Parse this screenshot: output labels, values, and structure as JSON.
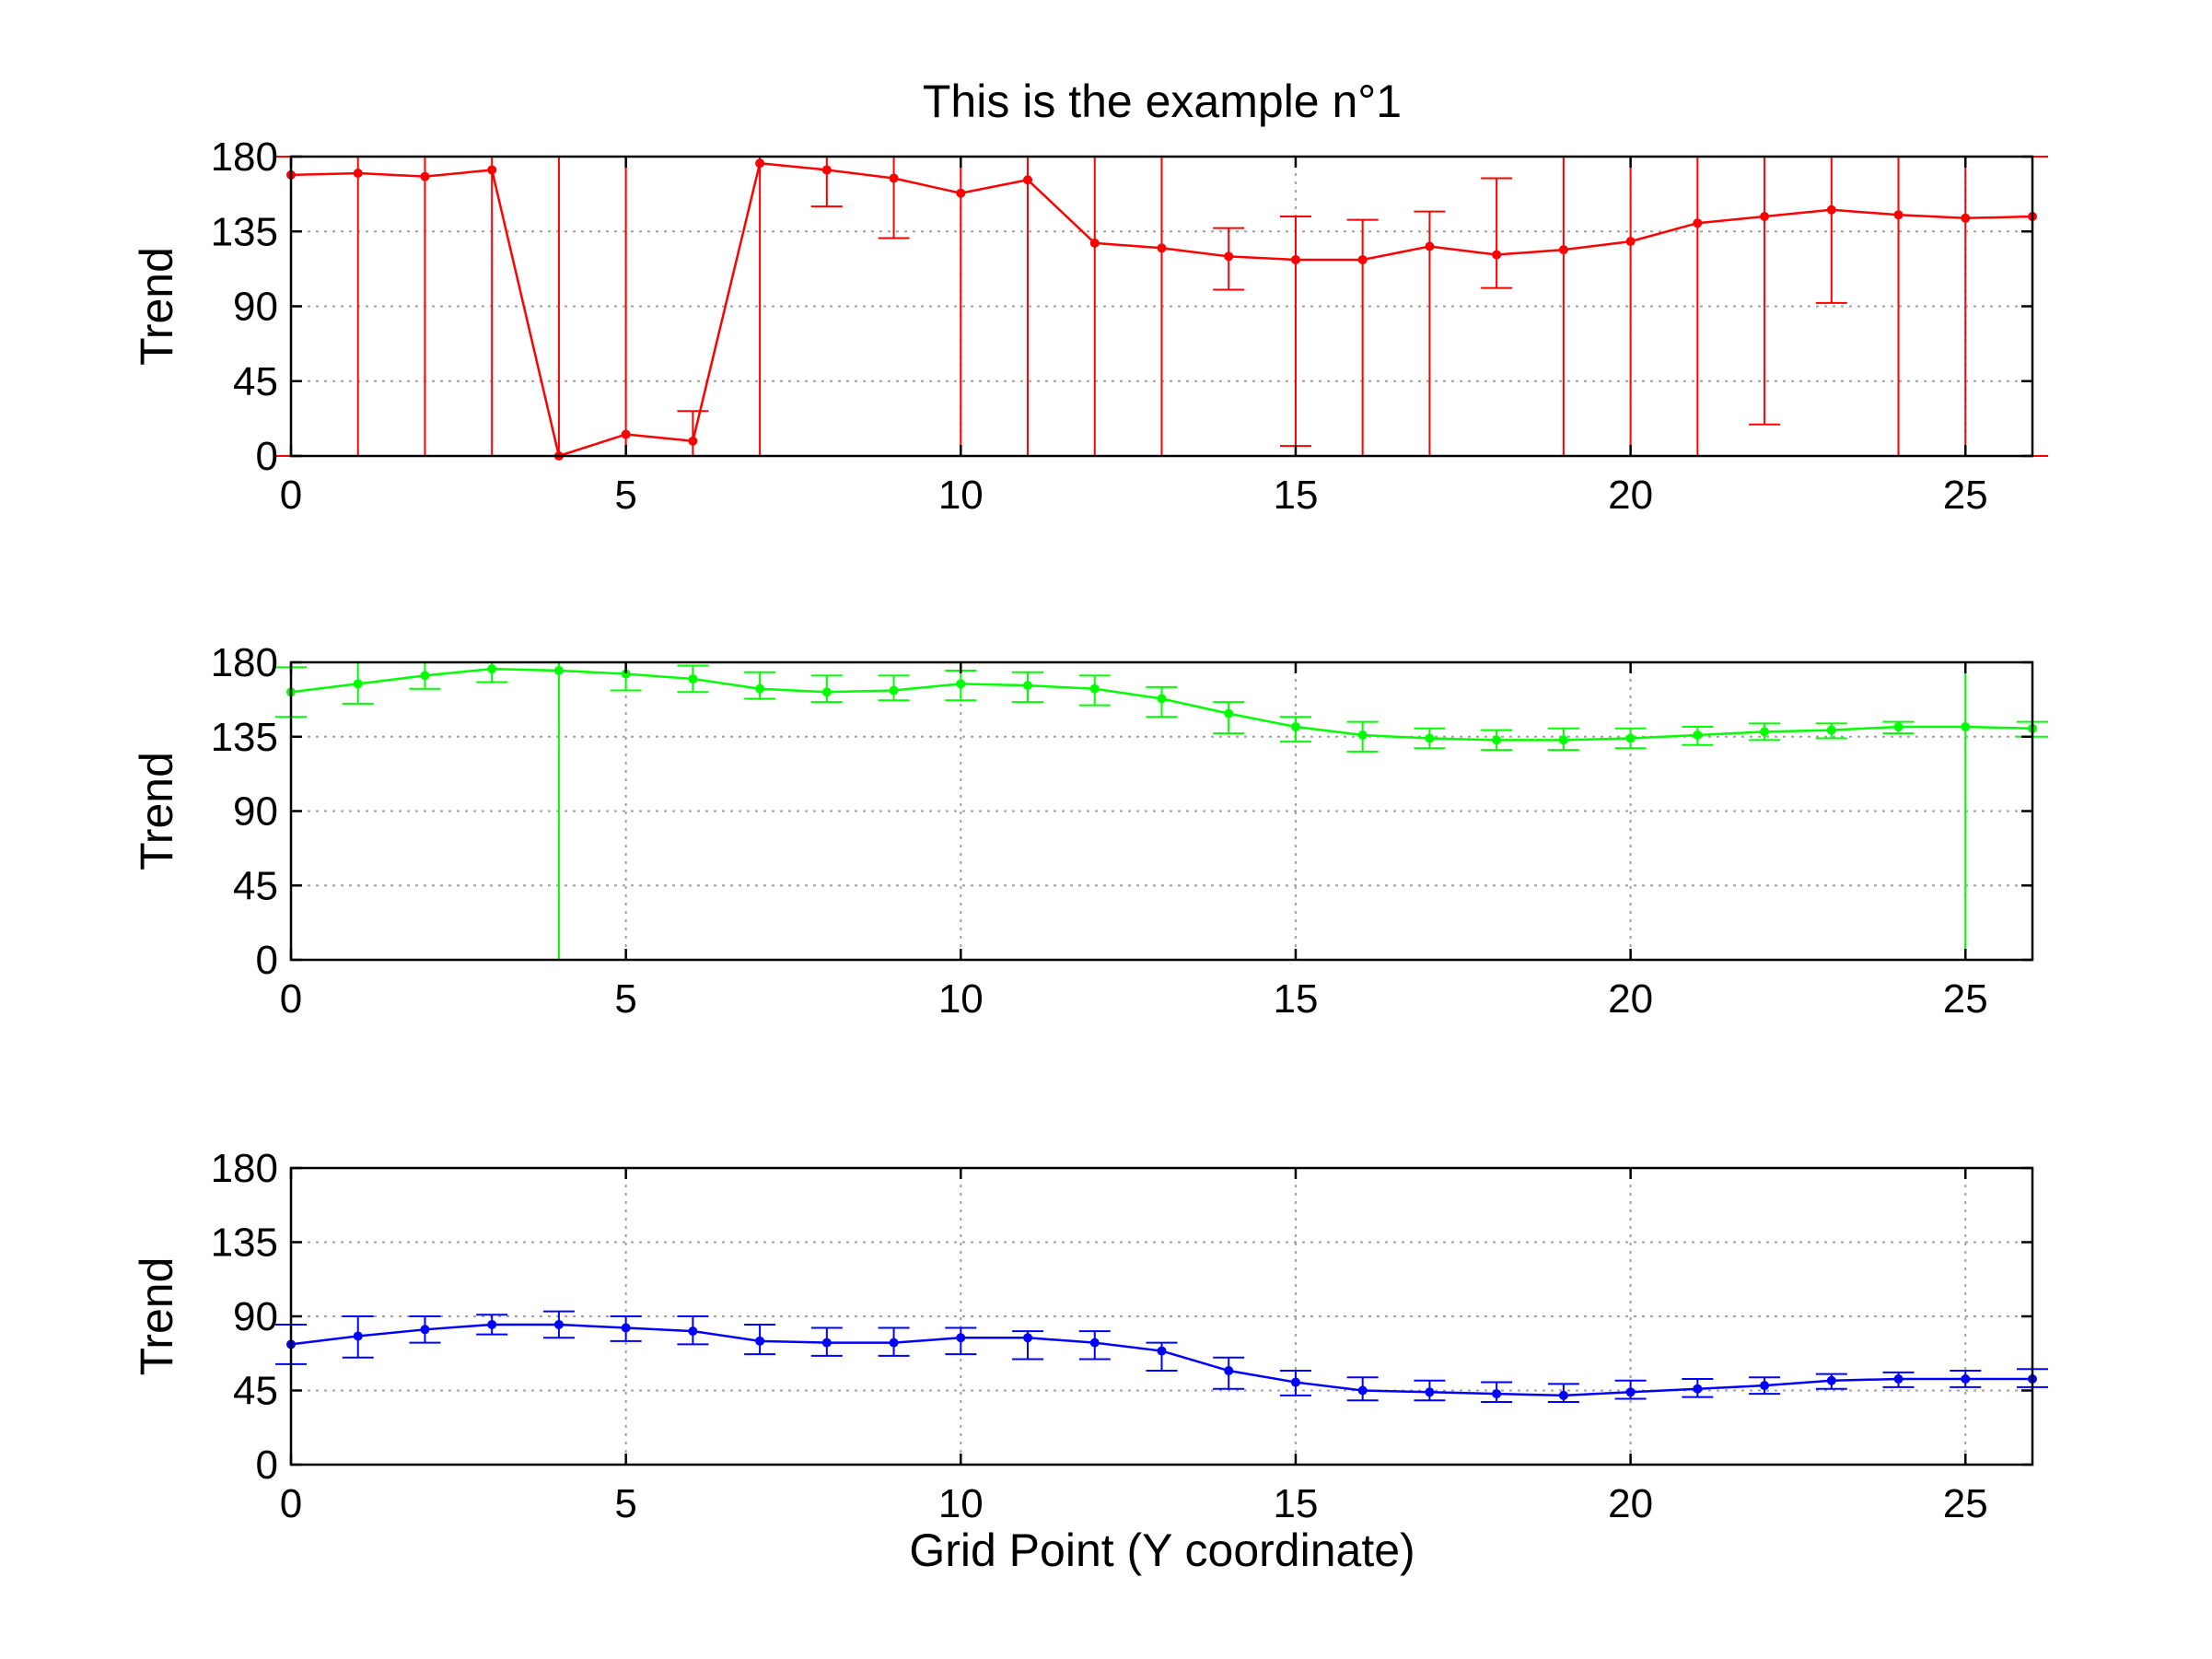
{
  "chart_data": [
    {
      "type": "line",
      "title": "This is the example n°1",
      "xlabel": "",
      "ylabel": "Trend",
      "xlim": [
        0,
        26
      ],
      "ylim": [
        0,
        180
      ],
      "xticks": [
        0,
        5,
        10,
        15,
        20,
        25
      ],
      "yticks": [
        0,
        45,
        90,
        135,
        180
      ],
      "grid": true,
      "color": "#ff0000",
      "series": [
        {
          "x": [
            0,
            1,
            2,
            3,
            4,
            5,
            6,
            7,
            8,
            9,
            10,
            11,
            12,
            13,
            14,
            15,
            16,
            17,
            18,
            19,
            20,
            21,
            22,
            23,
            24,
            25,
            26
          ],
          "values": [
            169,
            170,
            168,
            172,
            0,
            13,
            9,
            176,
            172,
            167,
            158,
            166,
            128,
            125,
            120,
            118,
            118,
            126,
            121,
            124,
            129,
            140,
            144,
            148,
            145,
            143,
            144
          ],
          "err_low": [
            169,
            170,
            168,
            172,
            0,
            13,
            150,
            176,
            22,
            36,
            158,
            166,
            128,
            125,
            20,
            112,
            118,
            126,
            20,
            124,
            129,
            140,
            125,
            56,
            145,
            143,
            144
          ],
          "err_high": [
            11,
            10,
            12,
            8,
            180,
            167,
            18,
            4,
            8,
            13,
            22,
            14,
            52,
            55,
            17,
            26,
            24,
            21,
            46,
            56,
            51,
            40,
            36,
            32,
            35,
            37,
            36
          ]
        }
      ]
    },
    {
      "type": "line",
      "title": "",
      "xlabel": "",
      "ylabel": "Trend",
      "xlim": [
        0,
        26
      ],
      "ylim": [
        0,
        180
      ],
      "xticks": [
        0,
        5,
        10,
        15,
        20,
        25
      ],
      "yticks": [
        0,
        45,
        90,
        135,
        180
      ],
      "grid": true,
      "color": "#00ff00",
      "series": [
        {
          "x": [
            0,
            1,
            2,
            3,
            4,
            5,
            6,
            7,
            8,
            9,
            10,
            11,
            12,
            13,
            14,
            15,
            16,
            17,
            18,
            19,
            20,
            21,
            22,
            23,
            24,
            25,
            26
          ],
          "values": [
            162,
            167,
            172,
            176,
            175,
            173,
            170,
            164,
            162,
            163,
            167,
            166,
            164,
            158,
            149,
            141,
            136,
            134,
            133,
            133,
            134,
            136,
            138,
            139,
            141,
            141,
            140
          ],
          "err_low": [
            15,
            12,
            8,
            8,
            175,
            10,
            8,
            6,
            6,
            6,
            10,
            10,
            10,
            11,
            12,
            9,
            10,
            6,
            6,
            6,
            6,
            6,
            5,
            5,
            4,
            141,
            5
          ],
          "err_high": [
            15,
            13,
            8,
            4,
            5,
            7,
            8,
            10,
            10,
            9,
            8,
            8,
            8,
            7,
            7,
            6,
            8,
            6,
            6,
            7,
            6,
            5,
            5,
            4,
            3,
            39,
            4
          ]
        }
      ]
    },
    {
      "type": "line",
      "title": "",
      "xlabel": "Grid Point (Y coordinate)",
      "ylabel": "Trend",
      "xlim": [
        0,
        26
      ],
      "ylim": [
        0,
        180
      ],
      "xticks": [
        0,
        5,
        10,
        15,
        20,
        25
      ],
      "yticks": [
        0,
        45,
        90,
        135,
        180
      ],
      "grid": true,
      "color": "#0000ff",
      "series": [
        {
          "x": [
            0,
            1,
            2,
            3,
            4,
            5,
            6,
            7,
            8,
            9,
            10,
            11,
            12,
            13,
            14,
            15,
            16,
            17,
            18,
            19,
            20,
            21,
            22,
            23,
            24,
            25,
            26
          ],
          "values": [
            73,
            78,
            82,
            85,
            85,
            83,
            81,
            75,
            74,
            74,
            77,
            77,
            74,
            69,
            57,
            50,
            45,
            44,
            43,
            42,
            44,
            46,
            48,
            51,
            52,
            52,
            52
          ],
          "err_low": [
            12,
            13,
            8,
            6,
            8,
            8,
            8,
            8,
            8,
            8,
            10,
            13,
            10,
            12,
            11,
            8,
            6,
            5,
            5,
            4,
            4,
            5,
            5,
            5,
            5,
            5,
            5
          ],
          "err_high": [
            12,
            12,
            8,
            6,
            8,
            7,
            9,
            10,
            9,
            9,
            6,
            4,
            7,
            5,
            8,
            7,
            8,
            7,
            7,
            7,
            7,
            6,
            5,
            4,
            4,
            5,
            6
          ]
        }
      ]
    }
  ]
}
